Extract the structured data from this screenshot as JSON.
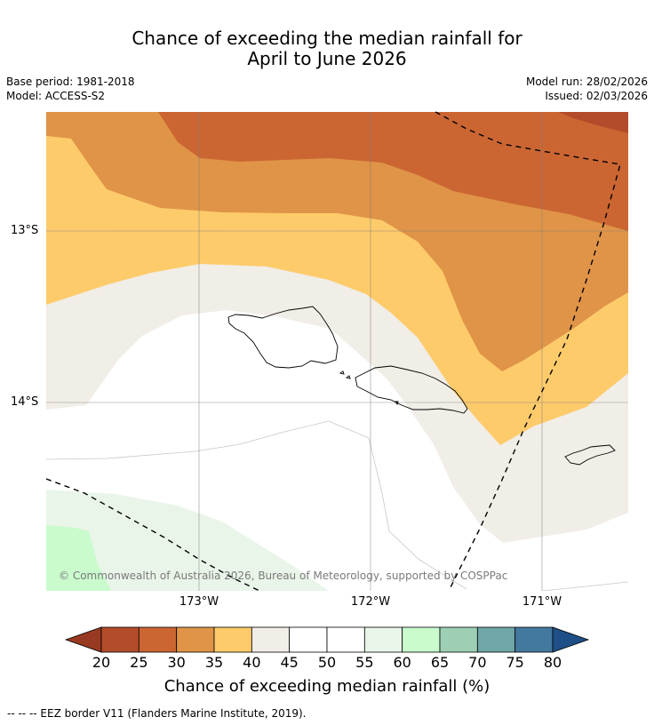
{
  "header": {
    "title_line1": "Chance of exceeding the median rainfall for",
    "title_line2": "April to June 2026",
    "base_period": "Base period: 1981-2018",
    "model": "Model: ACCESS-S2",
    "model_run": "Model run: 28/02/2026",
    "issued": "Issued: 02/03/2026"
  },
  "map": {
    "lat_labels": [
      "13°S",
      "14°S"
    ],
    "lon_labels": [
      "173°W",
      "172°W",
      "171°W"
    ],
    "copyright": "© Commonwealth of Australia 2026, Bureau of Meteorology, supported by COSPPac",
    "colors": {
      "c20_25": "#b34c2a",
      "c25_30": "#cb6633",
      "c30_35": "#e09447",
      "c35_40": "#fecb6b",
      "c40_45": "#f1ede7",
      "c45_55": "#ffffff",
      "c55_60": "#e9f5e9",
      "c60_65": "#c9fbcd"
    }
  },
  "colorbar": {
    "ticks": [
      "20",
      "25",
      "30",
      "35",
      "40",
      "45",
      "50",
      "55",
      "60",
      "65",
      "70",
      "75",
      "80"
    ],
    "colors": [
      "#b34c2a",
      "#cb6633",
      "#e09447",
      "#fecb6b",
      "#f1ede7",
      "#ffffff",
      "#ffffff",
      "#e9f5e9",
      "#c9fbcd",
      "#9ecfb5",
      "#6fa6a6",
      "#44799e"
    ],
    "low_extend_color": "#983a21",
    "high_extend_color": "#1e4f87",
    "label": "Chance of exceeding median rainfall (%)"
  },
  "footer": {
    "legend": "-- -- -- EEZ border V11 (Flanders Marine Institute, 2019)."
  }
}
